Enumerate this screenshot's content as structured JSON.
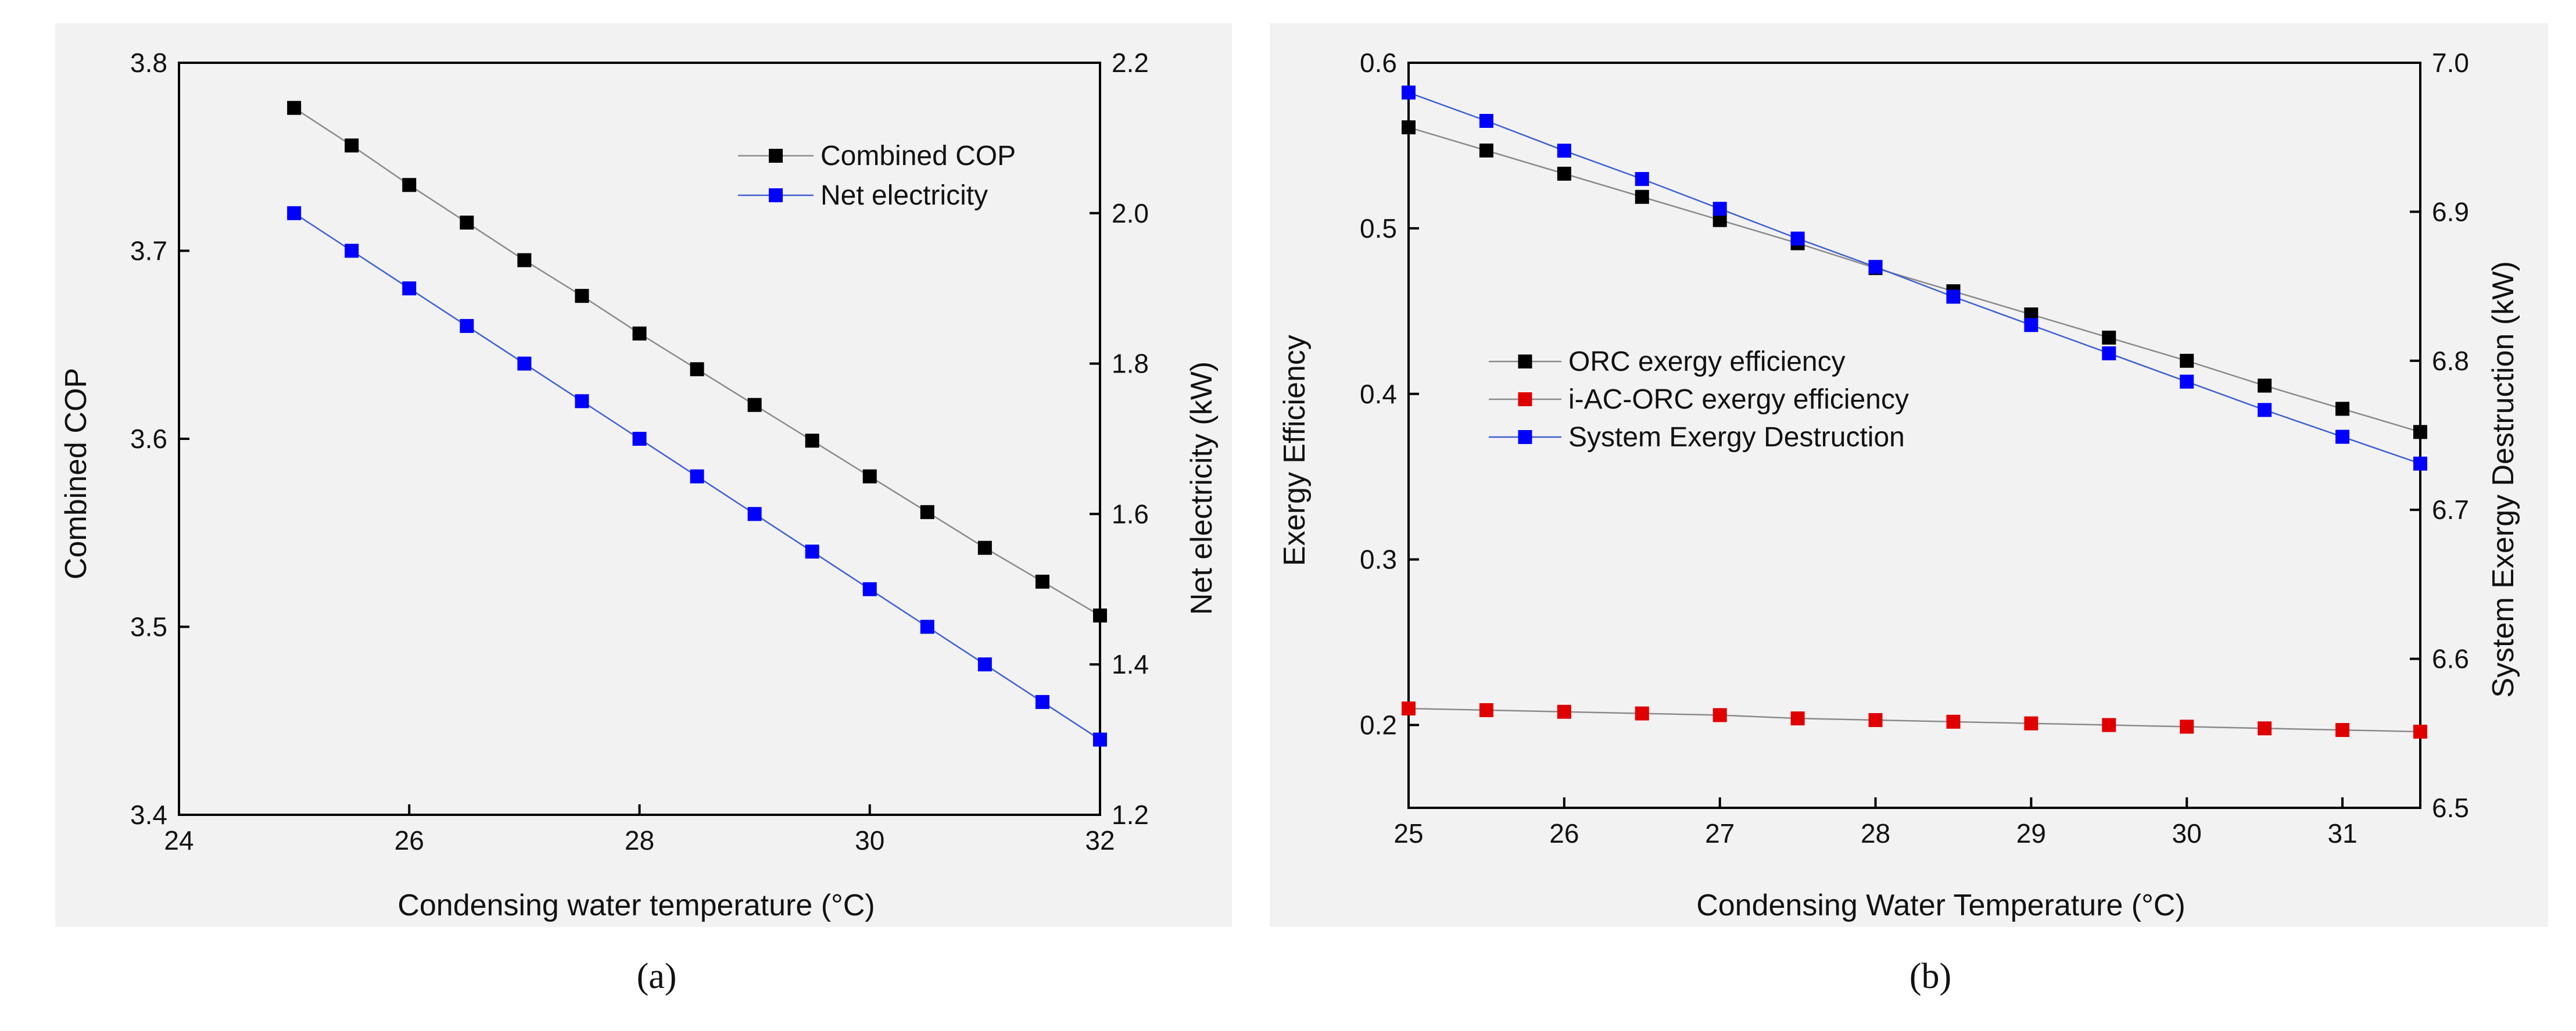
{
  "chart_data": [
    {
      "type": "line",
      "panel_label": "(a)",
      "xlabel": "Condensing water temperature (°C)",
      "ylabel": "Combined COP",
      "y2label": "Net electricity (kW)",
      "xlim": [
        24,
        32
      ],
      "ylim": [
        3.4,
        3.8
      ],
      "y2lim": [
        1.2,
        2.2
      ],
      "xticks": [
        "24",
        "26",
        "28",
        "30",
        "32"
      ],
      "yticks": [
        "3.4",
        "3.5",
        "3.6",
        "3.7",
        "3.8"
      ],
      "y2ticks": [
        "1.2",
        "1.4",
        "1.6",
        "1.8",
        "2.0",
        "2.2"
      ],
      "x": [
        25,
        25.5,
        26,
        26.5,
        27,
        27.5,
        28,
        28.5,
        29,
        29.5,
        30,
        30.5,
        31,
        31.5,
        32
      ],
      "legend_position": "top-right",
      "series": [
        {
          "name": "Combined COP",
          "axis": "left",
          "color": "#000000",
          "line_color": "#8a8a8a",
          "values": [
            3.776,
            3.756,
            3.735,
            3.715,
            3.695,
            3.676,
            3.656,
            3.637,
            3.618,
            3.599,
            3.58,
            3.561,
            3.542,
            3.524,
            3.506
          ]
        },
        {
          "name": "Net electricity",
          "axis": "right",
          "color": "#0000ff",
          "line_color": "#3f5fd0",
          "values": [
            2.0,
            1.95,
            1.9,
            1.85,
            1.8,
            1.75,
            1.7,
            1.65,
            1.6,
            1.55,
            1.5,
            1.45,
            1.4,
            1.35,
            1.3
          ]
        }
      ]
    },
    {
      "type": "line",
      "panel_label": "(b)",
      "xlabel": "Condensing Water Temperature (°C)",
      "ylabel": "Exergy Efficiency",
      "y2label": "System Exergy Destruction (kW)",
      "xlim": [
        25,
        31.5
      ],
      "ylim": [
        0.15,
        0.6
      ],
      "y2lim": [
        6.5,
        7.0
      ],
      "xticks": [
        "25",
        "26",
        "27",
        "28",
        "29",
        "30",
        "31"
      ],
      "yticks": [
        "0.2",
        "0.3",
        "0.4",
        "0.5",
        "0.6"
      ],
      "y2ticks": [
        "6.5",
        "6.6",
        "6.7",
        "6.8",
        "6.9",
        "7.0"
      ],
      "x": [
        25,
        25.5,
        26,
        26.5,
        27,
        27.5,
        28,
        28.5,
        29,
        29.5,
        30,
        30.5,
        31,
        31.5
      ],
      "legend_position": "center-left",
      "series": [
        {
          "name": "ORC exergy efficiency",
          "axis": "left",
          "color": "#000000",
          "line_color": "#8a8a8a",
          "values": [
            0.561,
            0.547,
            0.533,
            0.519,
            0.505,
            0.491,
            0.476,
            0.462,
            0.448,
            0.434,
            0.42,
            0.405,
            0.391,
            0.377
          ]
        },
        {
          "name": "i-AC-ORC exergy efficiency",
          "axis": "left",
          "color": "#e00000",
          "line_color": "#8a8a8a",
          "values": [
            0.21,
            0.209,
            0.208,
            0.207,
            0.206,
            0.204,
            0.203,
            0.202,
            0.201,
            0.2,
            0.199,
            0.198,
            0.197,
            0.196
          ]
        },
        {
          "name": "System Exergy Destruction",
          "axis": "right",
          "color": "#0000ff",
          "line_color": "#3f5fd0",
          "values": [
            6.98,
            6.961,
            6.941,
            6.922,
            6.902,
            6.882,
            6.863,
            6.843,
            6.824,
            6.805,
            6.786,
            6.767,
            6.749,
            6.731
          ]
        }
      ]
    }
  ]
}
